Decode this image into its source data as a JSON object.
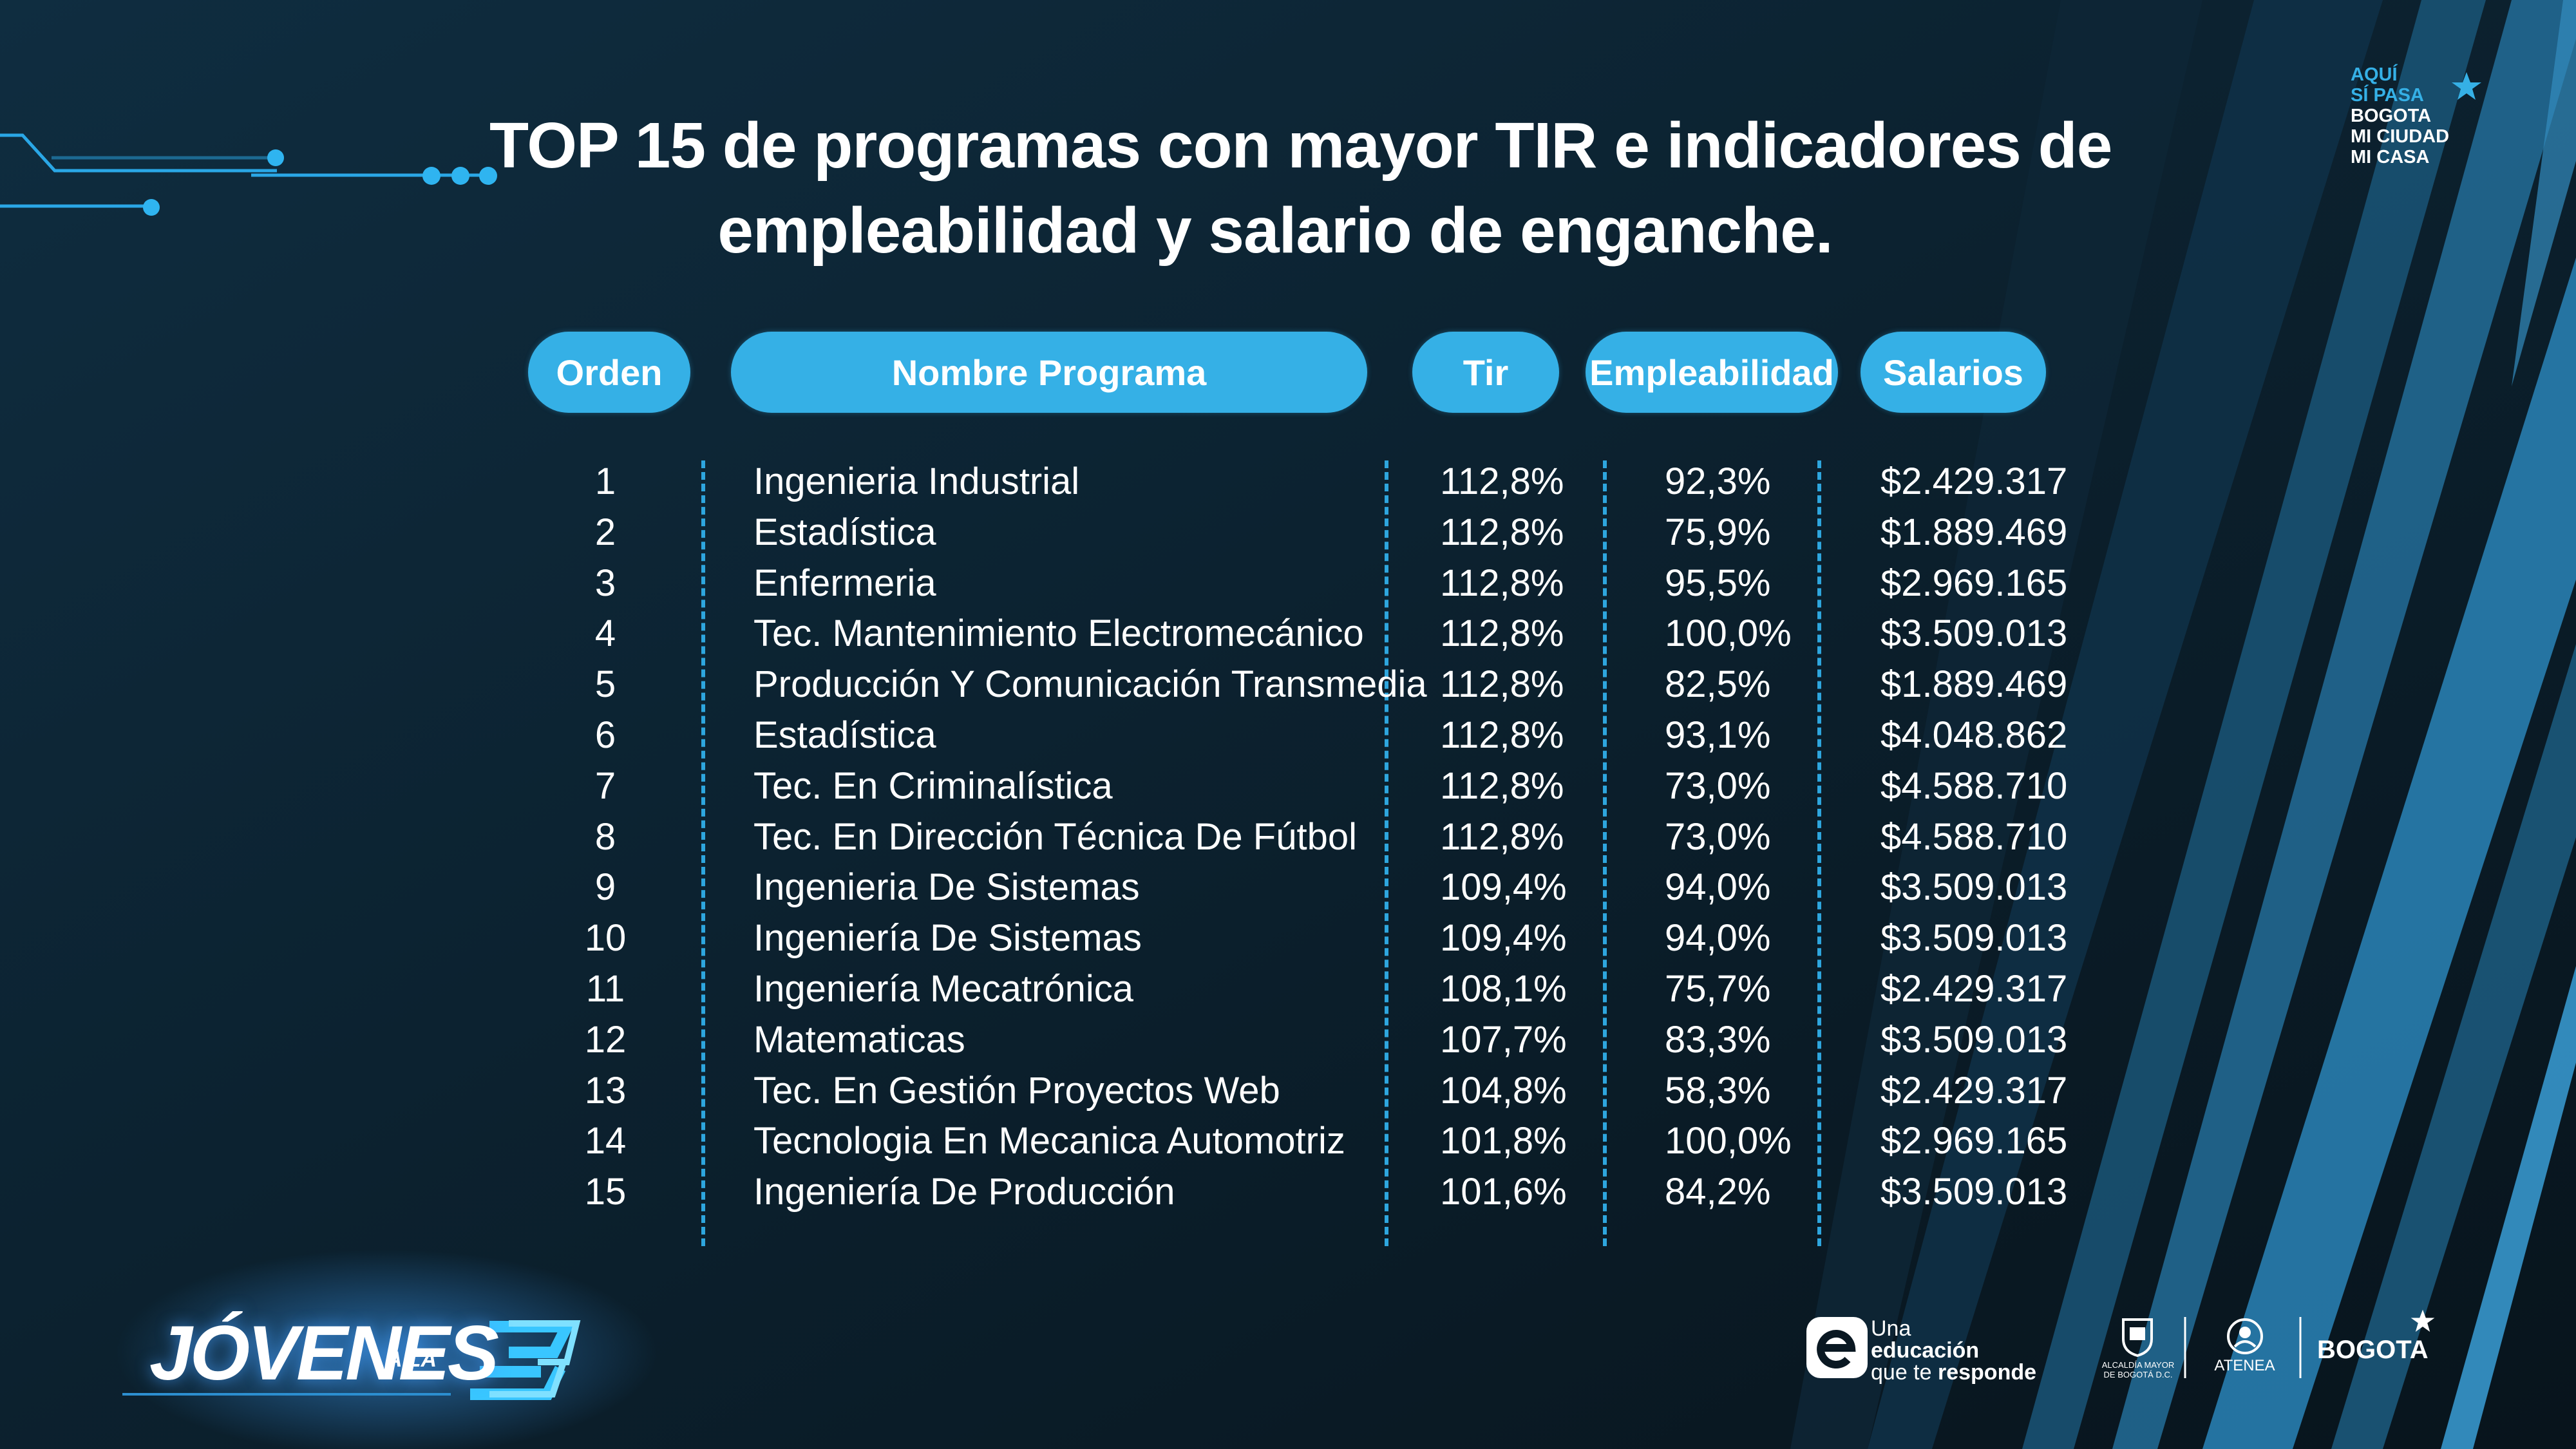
{
  "title": {
    "line1": "TOP 15 de programas con mayor TIR e indicadores de",
    "line2": "empleabilidad y salario de enganche."
  },
  "headers": {
    "orden": "Orden",
    "nombre": "Nombre Programa",
    "tir": "Tir",
    "empleabilidad": "Empleabilidad",
    "salarios": "Salarios"
  },
  "rows": [
    {
      "orden": "1",
      "nombre": "Ingenieria Industrial",
      "tir": "112,8%",
      "empleabilidad": "92,3%",
      "salario": "$2.429.317"
    },
    {
      "orden": "2",
      "nombre": "Estadística",
      "tir": "112,8%",
      "empleabilidad": "75,9%",
      "salario": "$1.889.469"
    },
    {
      "orden": "3",
      "nombre": "Enfermeria",
      "tir": "112,8%",
      "empleabilidad": "95,5%",
      "salario": "$2.969.165"
    },
    {
      "orden": "4",
      "nombre": "Tec. Mantenimiento Electromecánico",
      "tir": "112,8%",
      "empleabilidad": "100,0%",
      "salario": "$3.509.013"
    },
    {
      "orden": "5",
      "nombre": "Producción Y Comunicación Transmedia",
      "tir": "112,8%",
      "empleabilidad": "82,5%",
      "salario": "$1.889.469"
    },
    {
      "orden": "6",
      "nombre": "Estadística",
      "tir": "112,8%",
      "empleabilidad": "93,1%",
      "salario": "$4.048.862"
    },
    {
      "orden": "7",
      "nombre": "Tec. En Criminalística",
      "tir": "112,8%",
      "empleabilidad": "73,0%",
      "salario": "$4.588.710"
    },
    {
      "orden": "8",
      "nombre": "Tec. En Dirección Técnica De Fútbol",
      "tir": "112,8%",
      "empleabilidad": "73,0%",
      "salario": "$4.588.710"
    },
    {
      "orden": "9",
      "nombre": "Ingenieria De Sistemas",
      "tir": "109,4%",
      "empleabilidad": "94,0%",
      "salario": "$3.509.013"
    },
    {
      "orden": "10",
      "nombre": "Ingeniería De Sistemas",
      "tir": "109,4%",
      "empleabilidad": "94,0%",
      "salario": "$3.509.013"
    },
    {
      "orden": "11",
      "nombre": "Ingeniería Mecatrónica",
      "tir": "108,1%",
      "empleabilidad": "75,7%",
      "salario": "$2.429.317"
    },
    {
      "orden": "12",
      "nombre": "Matematicas",
      "tir": "107,7%",
      "empleabilidad": "83,3%",
      "salario": "$3.509.013"
    },
    {
      "orden": "13",
      "nombre": "Tec. En Gestión Proyectos Web",
      "tir": "104,8%",
      "empleabilidad": "58,3%",
      "salario": "$2.429.317"
    },
    {
      "orden": "14",
      "nombre": "Tecnologia En Mecanica Automotriz",
      "tir": "101,8%",
      "empleabilidad": "100,0%",
      "salario": "$2.969.165"
    },
    {
      "orden": "15",
      "nombre": "Ingeniería De Producción",
      "tir": "101,6%",
      "empleabilidad": "84,2%",
      "salario": "$3.509.013"
    }
  ],
  "logos": {
    "campaign": {
      "line1": "AQUÍ",
      "line2": "SÍ PASA",
      "line3": "BOGOTA",
      "line4": "MI CIUDAD",
      "line5": "MI CASA"
    },
    "jovenes": {
      "main": "JÓVENES",
      "small": "A LA"
    },
    "education": {
      "line1": "Una",
      "line2": "educación",
      "line3": "que te",
      "line3b": "responde"
    },
    "alcaldia": {
      "line1": "ALCALDÍA MAYOR",
      "line2": "DE BOGOTÁ D.C."
    },
    "atenea": {
      "name": "ATENEA"
    },
    "bogota": "BOGOTA"
  },
  "colors": {
    "accent": "#35b0e6",
    "background": "#0a1822",
    "text": "#ffffff"
  }
}
